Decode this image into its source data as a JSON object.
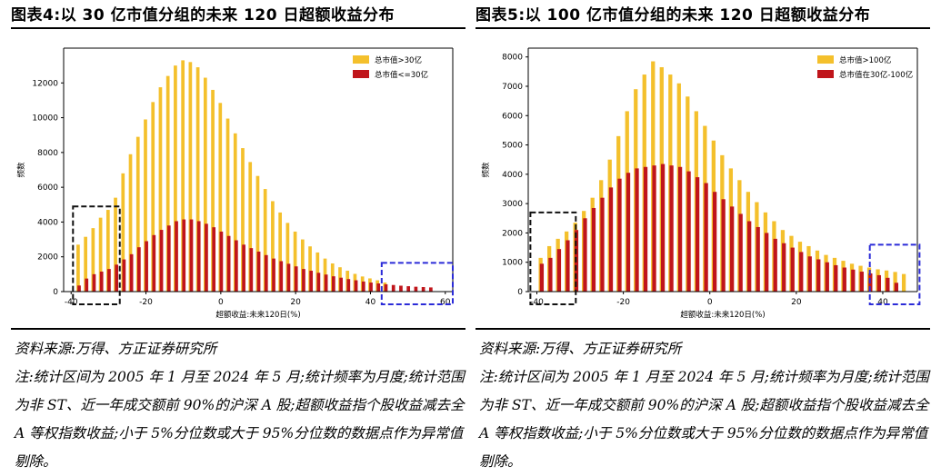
{
  "panels": [
    {
      "title": "图表4:以 30 亿市值分组的未来 120 日超额收益分布",
      "source": "资料来源:万得、方正证券研究所",
      "note": "注:统计区间为 2005 年 1 月至 2024 年 5 月;统计频率为月度;统计范围为非 ST、近一年成交额前 90%的沪深 A 股;超额收益指个股收益减去全 A 等权指数收益;小于 5%分位数或大于 95%分位数的数据点作为异常值剔除。"
    },
    {
      "title": "图表5:以 100 亿市值分组的未来 120 日超额收益分布",
      "source": "资料来源:万得、方正证券研究所",
      "note": "注:统计区间为 2005 年 1 月至 2024 年 5 月;统计频率为月度;统计范围为非 ST、近一年成交额前 90%的沪深 A 股;超额收益指个股收益减去全 A 等权指数收益;小于 5%分位数或大于 95%分位数的数据点作为异常值剔除。"
    }
  ],
  "chart_data": [
    {
      "type": "bar",
      "xlabel": "超额收益:未来120日(%)",
      "ylabel": "频数",
      "xlim": [
        -42,
        62
      ],
      "ylim": [
        0,
        14000
      ],
      "xticks": [
        -40,
        -20,
        0,
        20,
        40,
        60
      ],
      "yticks": [
        0,
        2000,
        4000,
        6000,
        8000,
        10000,
        12000
      ],
      "grid": false,
      "legend_position": "top-right",
      "colors": {
        "large": "#F4C02C",
        "small": "#C0151B",
        "highlight_left": "#111111",
        "highlight_right": "#2B2BD8"
      },
      "series": [
        {
          "name": "总市值>30亿",
          "x": [
            -38,
            -36,
            -34,
            -32,
            -30,
            -28,
            -26,
            -24,
            -22,
            -20,
            -18,
            -16,
            -14,
            -12,
            -10,
            -8,
            -6,
            -4,
            -2,
            0,
            2,
            4,
            6,
            8,
            10,
            12,
            14,
            16,
            18,
            20,
            22,
            24,
            26,
            28,
            30,
            32,
            34,
            36,
            38,
            40,
            42,
            44
          ],
          "values": [
            2700,
            3150,
            3650,
            4250,
            4700,
            5400,
            6800,
            7900,
            8900,
            9900,
            10900,
            11750,
            12400,
            13000,
            13300,
            13200,
            12900,
            12300,
            11600,
            10850,
            9950,
            9100,
            8250,
            7450,
            6650,
            5900,
            5200,
            4550,
            3950,
            3450,
            3000,
            2600,
            2250,
            1900,
            1620,
            1400,
            1200,
            1020,
            870,
            760,
            650,
            520
          ]
        },
        {
          "name": "总市值<=30亿",
          "x": [
            -38,
            -36,
            -34,
            -32,
            -30,
            -28,
            -26,
            -24,
            -22,
            -20,
            -18,
            -16,
            -14,
            -12,
            -10,
            -8,
            -6,
            -4,
            -2,
            0,
            2,
            4,
            6,
            8,
            10,
            12,
            14,
            16,
            18,
            20,
            22,
            24,
            26,
            28,
            30,
            32,
            34,
            36,
            38,
            40,
            42,
            44,
            46,
            48,
            50,
            52,
            54,
            56
          ],
          "values": [
            350,
            750,
            1000,
            1150,
            1300,
            1550,
            1850,
            2150,
            2550,
            2900,
            3250,
            3550,
            3800,
            4050,
            4150,
            4150,
            4050,
            3900,
            3700,
            3450,
            3200,
            2950,
            2700,
            2500,
            2300,
            2100,
            1900,
            1750,
            1600,
            1450,
            1300,
            1200,
            1080,
            980,
            880,
            800,
            720,
            650,
            580,
            520,
            470,
            420,
            380,
            340,
            310,
            280,
            260,
            240
          ]
        }
      ]
    },
    {
      "type": "bar",
      "xlabel": "超额收益:未来120日(%)",
      "ylabel": "频数",
      "xlim": [
        -42,
        48
      ],
      "ylim": [
        0,
        8300
      ],
      "xticks": [
        -40,
        -20,
        0,
        20,
        40
      ],
      "yticks": [
        0,
        1000,
        2000,
        3000,
        4000,
        5000,
        6000,
        7000,
        8000
      ],
      "grid": false,
      "legend_position": "top-right",
      "colors": {
        "large": "#F4C02C",
        "small": "#C0151B",
        "highlight_left": "#111111",
        "highlight_right": "#2B2BD8"
      },
      "series": [
        {
          "name": "总市值>100亿",
          "x": [
            -39,
            -37,
            -35,
            -33,
            -31,
            -29,
            -27,
            -25,
            -23,
            -21,
            -19,
            -17,
            -15,
            -13,
            -11,
            -9,
            -7,
            -5,
            -3,
            -1,
            1,
            3,
            5,
            7,
            9,
            11,
            13,
            15,
            17,
            19,
            21,
            23,
            25,
            27,
            29,
            31,
            33,
            35,
            37,
            39,
            41,
            43,
            45
          ],
          "values": [
            1150,
            1550,
            1800,
            2050,
            2350,
            2750,
            3200,
            3800,
            4500,
            5300,
            6150,
            6900,
            7400,
            7850,
            7650,
            7400,
            7100,
            6650,
            6150,
            5650,
            5150,
            4650,
            4200,
            3800,
            3400,
            3050,
            2700,
            2400,
            2100,
            1900,
            1700,
            1550,
            1400,
            1250,
            1150,
            1050,
            950,
            880,
            820,
            760,
            720,
            670,
            600
          ]
        },
        {
          "name": "总市值在30亿-100亿",
          "x": [
            -39,
            -37,
            -35,
            -33,
            -31,
            -29,
            -27,
            -25,
            -23,
            -21,
            -19,
            -17,
            -15,
            -13,
            -11,
            -9,
            -7,
            -5,
            -3,
            -1,
            1,
            3,
            5,
            7,
            9,
            11,
            13,
            15,
            17,
            19,
            21,
            23,
            25,
            27,
            29,
            31,
            33,
            35,
            37,
            39,
            41,
            43
          ],
          "values": [
            950,
            1150,
            1450,
            1750,
            2100,
            2500,
            2850,
            3200,
            3550,
            3850,
            4050,
            4200,
            4250,
            4300,
            4350,
            4300,
            4250,
            4100,
            3900,
            3700,
            3400,
            3150,
            2900,
            2650,
            2400,
            2200,
            2000,
            1800,
            1650,
            1500,
            1350,
            1200,
            1100,
            1000,
            900,
            820,
            750,
            680,
            620,
            560,
            470,
            300
          ]
        }
      ]
    }
  ]
}
